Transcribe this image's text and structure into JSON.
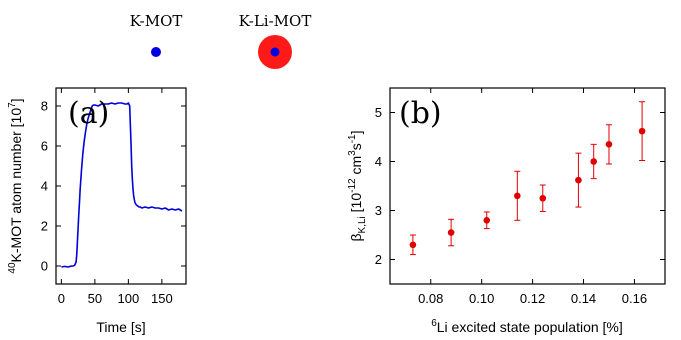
{
  "legend": {
    "k_mot_label": "K-MOT",
    "k_li_mot_label": "K-Li-MOT",
    "k_color": "#0000e0",
    "li_color": "#ff1a1a"
  },
  "chart_data": [
    {
      "type": "line",
      "panel_label": "(a)",
      "xlabel": "Time [s]",
      "ylabel_parts": [
        "40",
        "K-MOT atom number [10",
        "7",
        "]"
      ],
      "xlim": [
        -8,
        186
      ],
      "ylim": [
        -0.9,
        8.9
      ],
      "xticks": [
        0,
        50,
        100,
        150
      ],
      "yticks": [
        0,
        2,
        4,
        6,
        8
      ],
      "color": "#0000dd",
      "x": [
        0,
        5,
        10,
        15,
        18,
        20,
        22,
        23,
        24,
        25,
        26,
        27,
        28,
        29,
        30,
        32,
        34,
        36,
        38,
        40,
        42,
        44,
        46,
        48,
        50,
        55,
        60,
        65,
        70,
        75,
        80,
        85,
        90,
        95,
        98,
        100,
        102,
        103,
        104,
        105,
        106,
        107,
        108,
        109,
        110,
        112,
        114,
        116,
        118,
        120,
        125,
        130,
        135,
        140,
        145,
        150,
        155,
        160,
        165,
        170,
        175,
        180
      ],
      "y": [
        -0.05,
        -0.02,
        -0.05,
        0.0,
        0.0,
        0.05,
        0.2,
        0.6,
        1.2,
        1.9,
        2.6,
        3.2,
        3.8,
        4.3,
        4.8,
        5.6,
        6.2,
        6.7,
        7.1,
        7.4,
        7.6,
        7.8,
        8.0,
        8.05,
        8.05,
        8.0,
        8.1,
        8.1,
        8.1,
        8.15,
        8.1,
        8.15,
        8.15,
        8.1,
        8.1,
        8.15,
        8.0,
        7.0,
        6.0,
        5.0,
        4.3,
        3.8,
        3.5,
        3.3,
        3.15,
        3.05,
        3.0,
        2.95,
        2.95,
        2.9,
        2.95,
        2.9,
        2.95,
        2.9,
        2.9,
        2.85,
        2.9,
        2.8,
        2.85,
        2.8,
        2.85,
        2.75
      ]
    },
    {
      "type": "scatter",
      "panel_label": "(b)",
      "xlabel_parts": [
        "6",
        "Li excited state population [%]"
      ],
      "ylabel_parts": [
        "β",
        "K,Li",
        " [10",
        "-12",
        " cm",
        "3",
        "s",
        "-1",
        "]"
      ],
      "xlim": [
        0.064,
        0.172
      ],
      "ylim": [
        1.5,
        5.5
      ],
      "xticks": [
        0.08,
        0.1,
        0.12,
        0.14,
        0.16
      ],
      "xtick_labels": [
        "0.08",
        "0.10",
        "0.12",
        "0.14",
        "0.16"
      ],
      "yticks": [
        2,
        3,
        4,
        5
      ],
      "color": "#e00000",
      "x": [
        0.073,
        0.088,
        0.102,
        0.114,
        0.124,
        0.138,
        0.144,
        0.15,
        0.163
      ],
      "y": [
        2.3,
        2.55,
        2.8,
        3.3,
        3.25,
        3.62,
        4.0,
        4.35,
        4.62
      ],
      "err": [
        0.2,
        0.27,
        0.17,
        0.5,
        0.27,
        0.55,
        0.35,
        0.4,
        0.6
      ]
    }
  ]
}
